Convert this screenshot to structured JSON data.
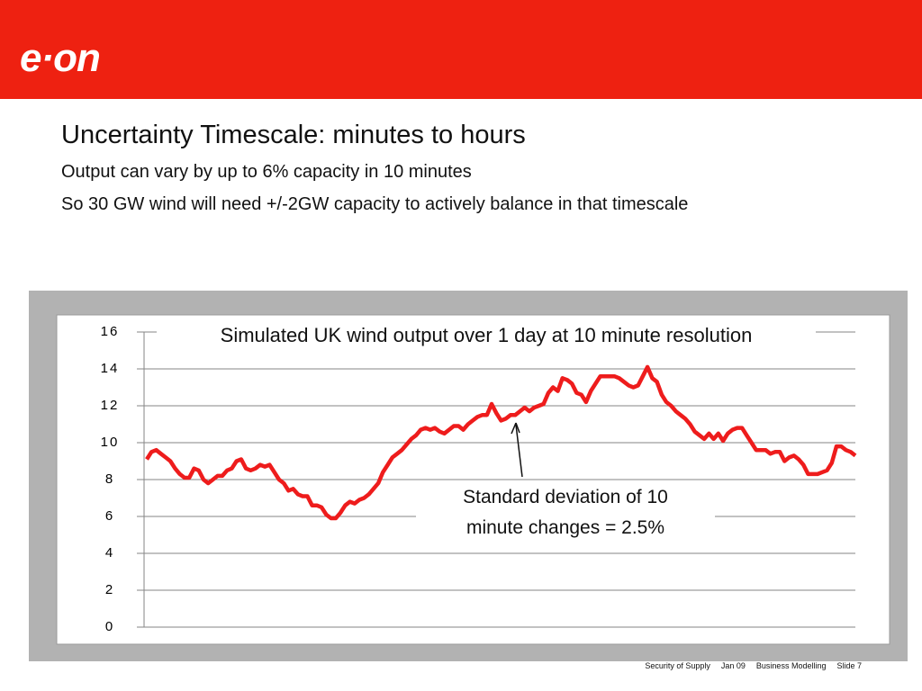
{
  "header": {
    "logo": "e·on"
  },
  "slide": {
    "title": "Uncertainty Timescale: minutes to hours",
    "bullets": [
      "Output can vary by up to 6% capacity in 10 minutes",
      "So 30 GW wind will need +/-2GW capacity to actively balance in that timescale"
    ]
  },
  "chart_data": {
    "type": "line",
    "title": "Simulated UK wind output over 1 day at 10 minute resolution",
    "annotation": "Standard deviation of 10 minute changes = 2.5%",
    "color": "#ee1c1c",
    "grid": true,
    "ylim": [
      0,
      16
    ],
    "yticks": [
      0,
      2,
      4,
      6,
      8,
      10,
      12,
      14,
      16
    ],
    "values": [
      9.1,
      9.5,
      9.6,
      9.4,
      9.2,
      9.0,
      8.6,
      8.3,
      8.1,
      8.1,
      8.6,
      8.5,
      8.0,
      7.8,
      8.0,
      8.2,
      8.2,
      8.5,
      8.6,
      9.0,
      9.1,
      8.6,
      8.5,
      8.6,
      8.8,
      8.7,
      8.8,
      8.4,
      8.0,
      7.8,
      7.4,
      7.5,
      7.2,
      7.1,
      7.1,
      6.6,
      6.6,
      6.5,
      6.1,
      5.9,
      5.9,
      6.2,
      6.6,
      6.8,
      6.7,
      6.9,
      7.0,
      7.2,
      7.5,
      7.8,
      8.4,
      8.8,
      9.2,
      9.4,
      9.6,
      9.9,
      10.2,
      10.4,
      10.7,
      10.8,
      10.7,
      10.8,
      10.6,
      10.5,
      10.7,
      10.9,
      10.9,
      10.7,
      11.0,
      11.2,
      11.4,
      11.5,
      11.5,
      12.1,
      11.6,
      11.2,
      11.3,
      11.5,
      11.5,
      11.7,
      11.9,
      11.7,
      11.9,
      12.0,
      12.1,
      12.7,
      13.0,
      12.8,
      13.5,
      13.4,
      13.2,
      12.7,
      12.6,
      12.2,
      12.8,
      13.2,
      13.6,
      13.6,
      13.6,
      13.6,
      13.5,
      13.3,
      13.1,
      13.0,
      13.1,
      13.6,
      14.1,
      13.5,
      13.3,
      12.6,
      12.2,
      12.0,
      11.7,
      11.5,
      11.3,
      11.0,
      10.6,
      10.4,
      10.2,
      10.5,
      10.2,
      10.5,
      10.1,
      10.5,
      10.7,
      10.8,
      10.8,
      10.4,
      10.0,
      9.6,
      9.6,
      9.6,
      9.4,
      9.5,
      9.5,
      9.0,
      9.2,
      9.3,
      9.1,
      8.8,
      8.3,
      8.3,
      8.3,
      8.4,
      8.5,
      8.9,
      9.8,
      9.8,
      9.6,
      9.5,
      9.3
    ]
  },
  "footer": [
    "Security of Supply",
    "Jan 09",
    "Business Modelling",
    "Slide 7"
  ]
}
